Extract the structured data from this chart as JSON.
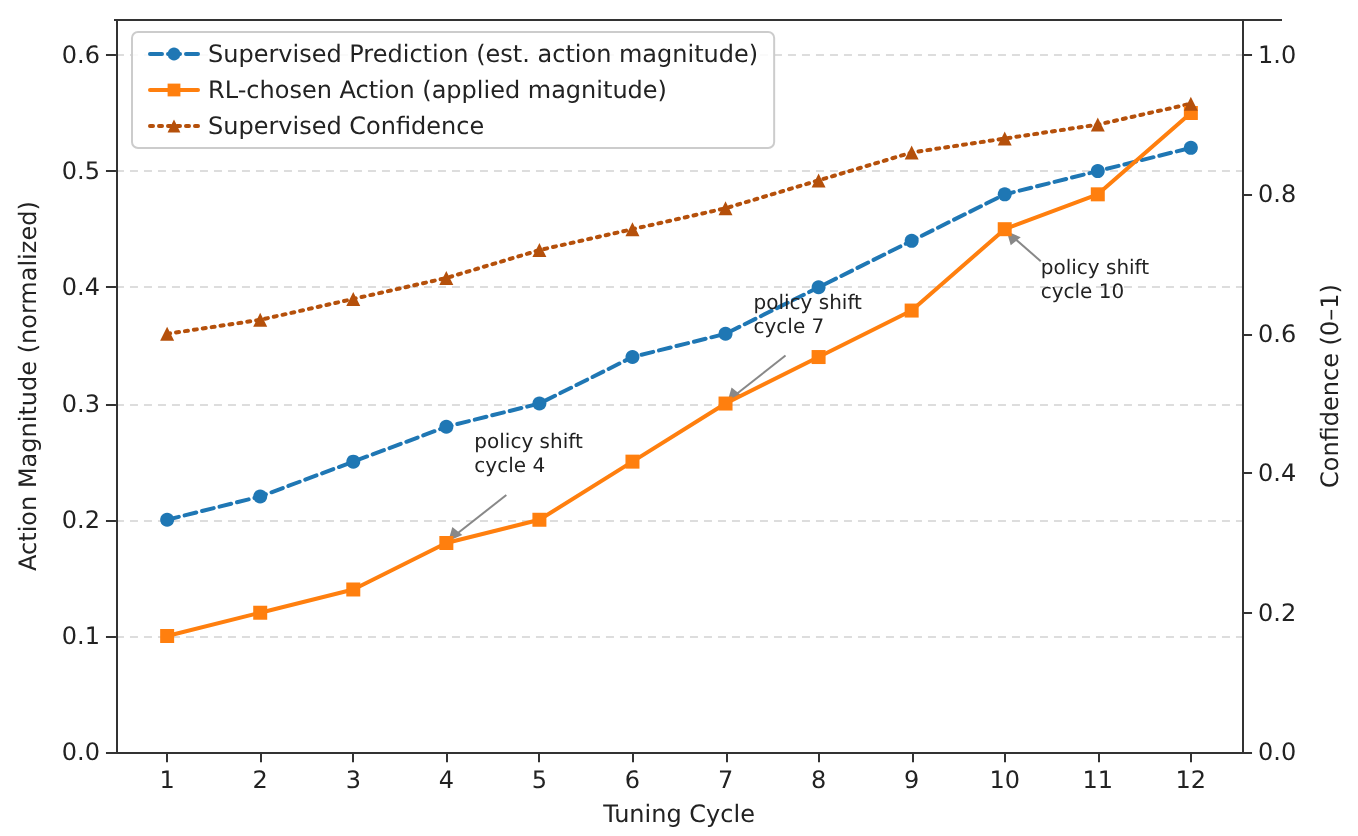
{
  "chart_data": {
    "type": "line",
    "xlabel": "Tuning Cycle",
    "ylabel": "Action Magnitude (normalized)",
    "y2label": "Confidence (0–1)",
    "x": [
      1,
      2,
      3,
      4,
      5,
      6,
      7,
      8,
      9,
      10,
      11,
      12
    ],
    "xlim": [
      0.45,
      12.55
    ],
    "xticks": [
      1,
      2,
      3,
      4,
      5,
      6,
      7,
      8,
      9,
      10,
      11,
      12
    ],
    "series": [
      {
        "name": "Supervised Prediction (est. action magnitude)",
        "color": "#1f77b4",
        "marker": "circle",
        "line_style": "dashed",
        "values": [
          0.2,
          0.22,
          0.25,
          0.28,
          0.3,
          0.34,
          0.36,
          0.4,
          0.44,
          0.48,
          0.5,
          0.52
        ]
      },
      {
        "name": "RL-chosen Action (applied magnitude)",
        "color": "#ff7f0e",
        "marker": "square",
        "line_style": "solid",
        "values": [
          0.1,
          0.12,
          0.14,
          0.18,
          0.2,
          0.25,
          0.3,
          0.34,
          0.38,
          0.45,
          0.48,
          0.55
        ]
      },
      {
        "name": "Supervised Confidence",
        "color": "#b5500b",
        "marker": "triangle",
        "line_style": "dotted",
        "axis": "y2",
        "values": [
          0.6,
          0.62,
          0.65,
          0.68,
          0.72,
          0.75,
          0.78,
          0.82,
          0.86,
          0.88,
          0.9,
          0.93
        ]
      }
    ],
    "ylim": [
      0,
      0.63
    ],
    "yticks": [
      {
        "value": 0,
        "label": "0.0"
      },
      0.1,
      0.2,
      0.3,
      0.4,
      0.5,
      0.6
    ],
    "y2lim": [
      0,
      1.05
    ],
    "y2ticks": [
      {
        "value": 0,
        "label": "0.0"
      },
      0.2,
      0.4,
      0.6,
      0.8,
      {
        "value": 1,
        "label": "1.0"
      }
    ],
    "annotations": [
      {
        "text": "policy shift\ncycle 4",
        "x": 4,
        "y": 0.18
      },
      {
        "text": "policy shift\ncycle 7",
        "x": 7,
        "y": 0.3
      },
      {
        "text": "policy shift\ncycle 10",
        "x": 10,
        "y": 0.45
      }
    ],
    "grid": "y",
    "legend": "top left"
  }
}
